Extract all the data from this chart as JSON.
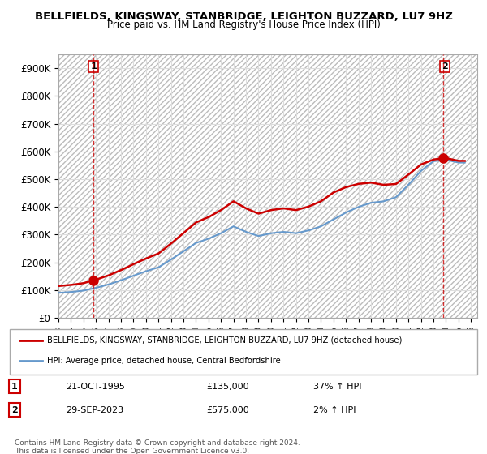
{
  "title": "BELLFIELDS, KINGSWAY, STANBRIDGE, LEIGHTON BUZZARD, LU7 9HZ",
  "subtitle": "Price paid vs. HM Land Registry's House Price Index (HPI)",
  "ylabel": "",
  "ylim": [
    0,
    950000
  ],
  "yticks": [
    0,
    100000,
    200000,
    300000,
    400000,
    500000,
    600000,
    700000,
    800000,
    900000
  ],
  "ytick_labels": [
    "£0",
    "£100K",
    "£200K",
    "£300K",
    "£400K",
    "£500K",
    "£600K",
    "£700K",
    "£800K",
    "£900K"
  ],
  "xlim_start": 1993.0,
  "xlim_end": 2026.5,
  "xticks": [
    1993,
    1994,
    1995,
    1996,
    1997,
    1998,
    1999,
    2000,
    2001,
    2002,
    2003,
    2004,
    2005,
    2006,
    2007,
    2008,
    2009,
    2010,
    2011,
    2012,
    2013,
    2014,
    2015,
    2016,
    2017,
    2018,
    2019,
    2020,
    2021,
    2022,
    2023,
    2024,
    2025,
    2026
  ],
  "legend_label_red": "BELLFIELDS, KINGSWAY, STANBRIDGE, LEIGHTON BUZZARD, LU7 9HZ (detached house)",
  "legend_label_blue": "HPI: Average price, detached house, Central Bedfordshire",
  "point1_x": 1995.8,
  "point1_y": 135000,
  "point1_label": "1",
  "point2_x": 2023.75,
  "point2_y": 575000,
  "point2_label": "2",
  "annotation1_date": "21-OCT-1995",
  "annotation1_price": "£135,000",
  "annotation1_hpi": "37% ↑ HPI",
  "annotation2_date": "29-SEP-2023",
  "annotation2_price": "£575,000",
  "annotation2_hpi": "2% ↑ HPI",
  "footnote": "Contains HM Land Registry data © Crown copyright and database right 2024.\nThis data is licensed under the Open Government Licence v3.0.",
  "red_color": "#cc0000",
  "blue_color": "#6699cc",
  "hatch_color": "#cccccc",
  "bg_color": "#ffffff",
  "grid_color": "#dddddd"
}
